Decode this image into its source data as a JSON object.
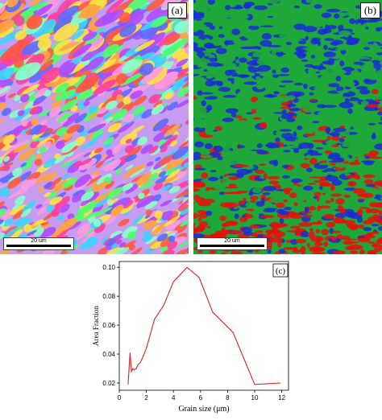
{
  "maps": [
    {
      "label": "(a)",
      "scale_text": "20 um",
      "kind": "ipf-orientation-map",
      "colors": [
        "#ff3fa0",
        "#3fd1ff",
        "#b04bff",
        "#ffe23f",
        "#4bff6a",
        "#ff5a3f",
        "#5a6bff",
        "#ff9be0",
        "#8affc8",
        "#ffa43f"
      ]
    },
    {
      "label": "(b)",
      "scale_text": "20 um",
      "kind": "phase-map",
      "colors": {
        "green": "#1fa83a",
        "blue": "#1a2bd6",
        "red": "#e8110a"
      }
    }
  ],
  "chart_data": {
    "type": "line",
    "label": "(c)",
    "xlabel": "Grain size (μm)",
    "ylabel": "Area Fraction",
    "xlim": [
      0,
      12.5
    ],
    "ylim": [
      0.015,
      0.104
    ],
    "xticks": [
      0,
      2,
      4,
      6,
      8,
      10,
      12
    ],
    "yticks": [
      0.02,
      0.04,
      0.06,
      0.08,
      0.1
    ],
    "ytick_labels": [
      "0.02",
      "0.04",
      "0.06",
      "0.08",
      "0.10"
    ],
    "series": [
      {
        "color": "#e02020",
        "x": [
          0.65,
          0.8,
          0.9,
          1.0,
          1.1,
          1.25,
          1.4,
          1.55,
          1.7,
          2.0,
          2.6,
          3.3,
          4.0,
          5.0,
          5.9,
          6.9,
          8.4,
          10.0,
          11.9
        ],
        "y": [
          0.019,
          0.041,
          0.028,
          0.03,
          0.029,
          0.03,
          0.033,
          0.034,
          0.037,
          0.044,
          0.064,
          0.074,
          0.09,
          0.1,
          0.093,
          0.069,
          0.055,
          0.019,
          0.02
        ]
      }
    ]
  }
}
